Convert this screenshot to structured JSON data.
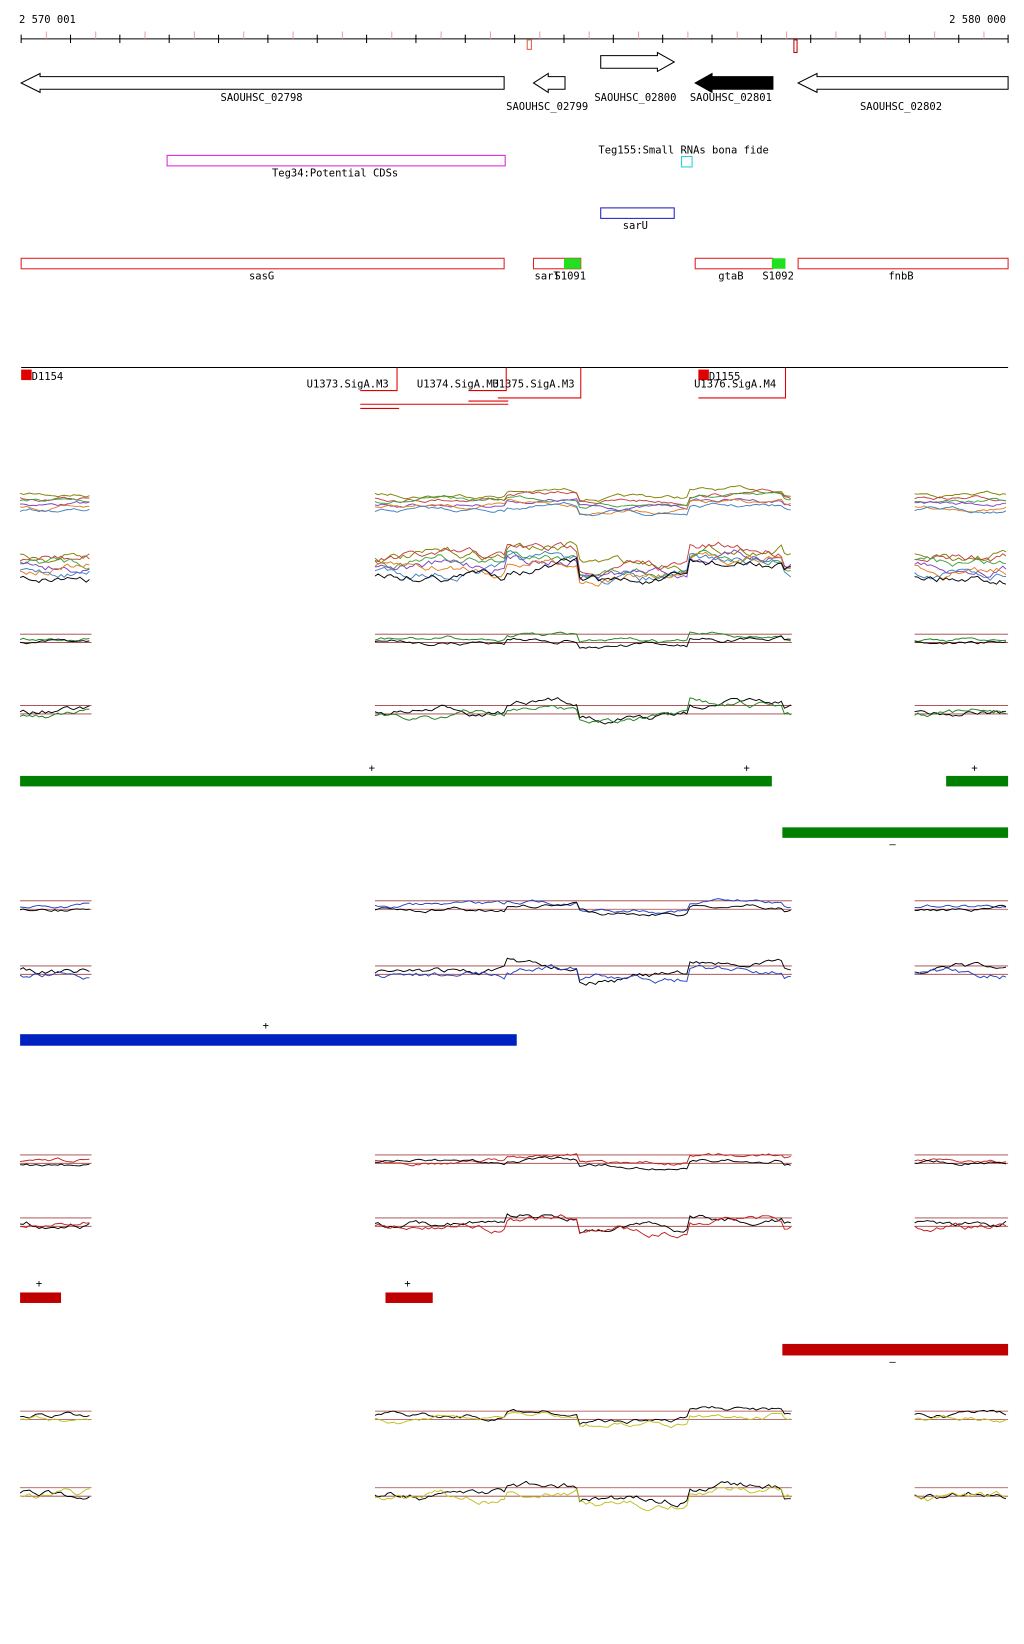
{
  "ruler": {
    "start": "2 570 001",
    "end": "2 580 000"
  },
  "genes": [
    "SAOUHSC_02798",
    "SAOUHSC_02799",
    "SAOUHSC_02800",
    "SAOUHSC_02801",
    "SAOUHSC_02802"
  ],
  "annotations": {
    "teg34": "Teg34:Potential CDSs",
    "teg155": "Teg155:Small RNAs bona fide",
    "sarU": "sarU"
  },
  "features": [
    "sasG",
    "sarT",
    "S1091",
    "gtaB",
    "S1092",
    "fnbB"
  ],
  "promoters": [
    "D1154",
    "U1373.SigA.M3",
    "U1374.SigA.M3",
    "U1375.SigA.M3",
    "D1155",
    "U1376.SigA.M4"
  ],
  "strand_labels": [
    "+",
    "+",
    "+",
    "–",
    "+",
    "+",
    "+",
    "–"
  ]
}
